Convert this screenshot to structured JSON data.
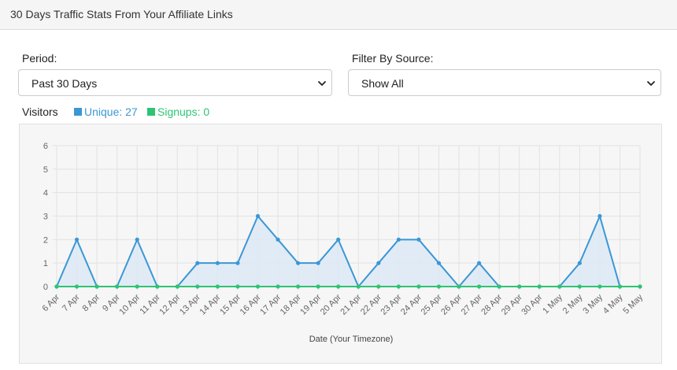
{
  "header": {
    "title": "30 Days Traffic Stats From Your Affiliate Links"
  },
  "period": {
    "label": "Period:",
    "value": "Past 30 Days"
  },
  "source": {
    "label": "Filter By Source:",
    "value": "Show All"
  },
  "legend": {
    "title": "Visitors",
    "unique_label": "Unique: 27",
    "signups_label": "Signups: 0"
  },
  "colors": {
    "unique": "#3a97d6",
    "signups": "#2ec473",
    "area_fill": "#dde9f4"
  },
  "chart_data": {
    "type": "line",
    "xlabel": "Date (Your Timezone)",
    "ylabel": "",
    "ylim": [
      0,
      6
    ],
    "yticks": [
      0,
      1,
      2,
      3,
      4,
      5,
      6
    ],
    "grid": true,
    "categories": [
      "6 Apr",
      "7 Apr",
      "8 Apr",
      "9 Apr",
      "10 Apr",
      "11 Apr",
      "12 Apr",
      "13 Apr",
      "14 Apr",
      "15 Apr",
      "16 Apr",
      "17 Apr",
      "18 Apr",
      "19 Apr",
      "20 Apr",
      "21 Apr",
      "22 Apr",
      "23 Apr",
      "24 Apr",
      "25 Apr",
      "26 Apr",
      "27 Apr",
      "28 Apr",
      "29 Apr",
      "30 Apr",
      "1 May",
      "2 May",
      "3 May",
      "4 May",
      "5 May"
    ],
    "series": [
      {
        "name": "Unique",
        "values": [
          0,
          2,
          0,
          0,
          2,
          0,
          0,
          1,
          1,
          1,
          3,
          2,
          1,
          1,
          2,
          0,
          1,
          2,
          2,
          1,
          0,
          1,
          0,
          0,
          0,
          0,
          1,
          3,
          0,
          0
        ]
      },
      {
        "name": "Signups",
        "values": [
          0,
          0,
          0,
          0,
          0,
          0,
          0,
          0,
          0,
          0,
          0,
          0,
          0,
          0,
          0,
          0,
          0,
          0,
          0,
          0,
          0,
          0,
          0,
          0,
          0,
          0,
          0,
          0,
          0,
          0
        ]
      }
    ]
  }
}
